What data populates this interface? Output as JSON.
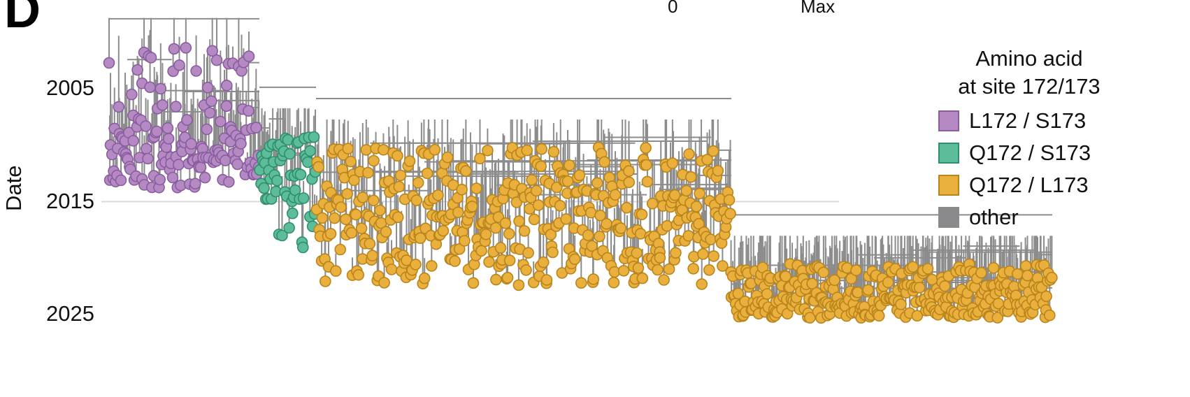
{
  "panel_label": "D",
  "color_scale": {
    "min_label": "0",
    "max_label": "Max"
  },
  "chart_data": {
    "type": "scatter",
    "subtype": "time-scaled phylogenetic tree",
    "title": "",
    "xlabel": "",
    "ylabel": "Date",
    "y_axis": {
      "ticks": [
        2005,
        2015,
        2025
      ],
      "range": [
        1998,
        2026
      ],
      "direction": "increasing downward"
    },
    "reference_line": 2015,
    "legend": {
      "title_lines": [
        "Amino acid",
        "at site 172/173"
      ],
      "placement": "top-right",
      "entries": [
        {
          "label": "L172 / S173",
          "fill": "#b58ac3",
          "stroke": "#8a5ca0"
        },
        {
          "label": "Q172 / S173",
          "fill": "#5dbd9a",
          "stroke": "#2f8f6c"
        },
        {
          "label": "Q172 / L173",
          "fill": "#eab03e",
          "stroke": "#b9841b"
        },
        {
          "label": "other",
          "fill": "#8a8a8d",
          "stroke": "#8a8a8d"
        }
      ]
    },
    "branch_color": "#8c8c8c",
    "clades": [
      {
        "group": "L172 / S173",
        "tip_order_start": 0.0,
        "tip_order_end": 0.16,
        "dates": [
          2001.2,
          2008.2,
          2009.9,
          2011.5,
          2013.8
        ]
      },
      {
        "group": "Q172 / S173",
        "tip_order_start": 0.16,
        "tip_order_end": 0.22,
        "dates": [
          2009.2,
          2011.0,
          2013.2,
          2016.1,
          2019.3
        ]
      },
      {
        "group": "Q172 / L173",
        "tip_order_start": 0.22,
        "tip_order_end": 0.66,
        "dates": [
          2010.2,
          2013.8,
          2016.0,
          2018.4,
          2022.5
        ]
      },
      {
        "group": "Q172 / L173",
        "tip_order_start": 0.66,
        "tip_order_end": 1.0,
        "dates": [
          2020.5,
          2022.3,
          2023.5,
          2024.6,
          2025.3
        ]
      }
    ]
  }
}
